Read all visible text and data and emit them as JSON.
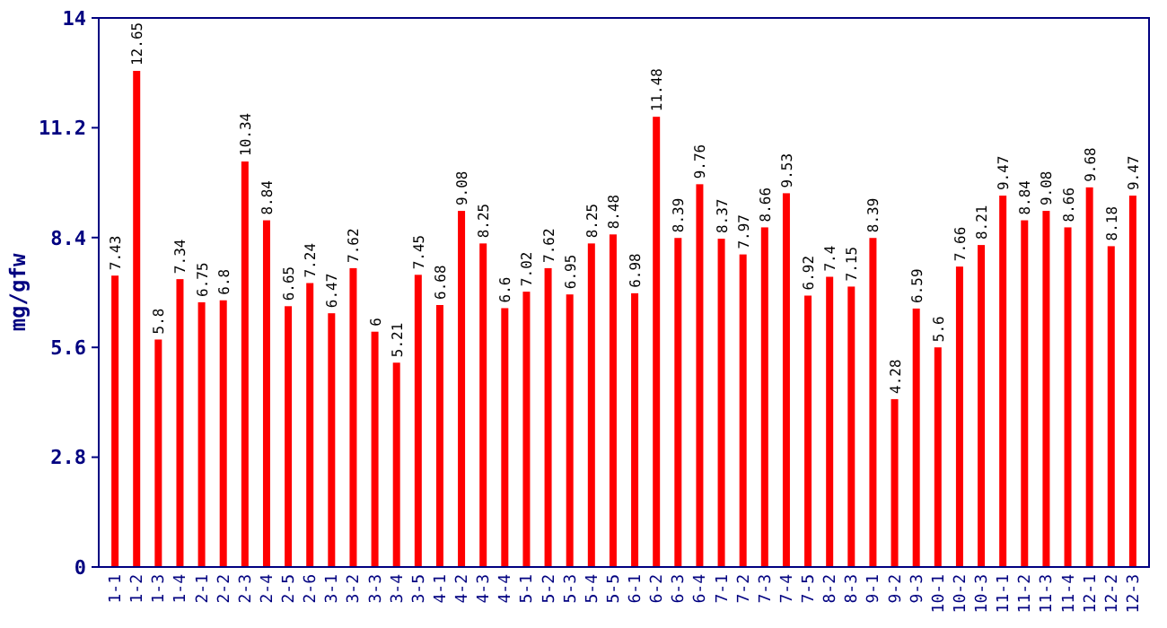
{
  "chart_data": {
    "type": "bar",
    "ylabel": "mg/gfw",
    "categories": [
      "1-1",
      "1-2",
      "1-3",
      "1-4",
      "2-1",
      "2-2",
      "2-3",
      "2-4",
      "2-5",
      "2-6",
      "3-1",
      "3-2",
      "3-3",
      "3-4",
      "3-5",
      "4-1",
      "4-2",
      "4-3",
      "4-4",
      "5-1",
      "5-2",
      "5-3",
      "5-4",
      "5-5",
      "6-1",
      "6-2",
      "6-3",
      "6-4",
      "7-1",
      "7-2",
      "7-3",
      "7-4",
      "7-5",
      "8-2",
      "8-3",
      "9-1",
      "9-2",
      "9-3",
      "10-1",
      "10-2",
      "10-3",
      "11-1",
      "11-2",
      "11-3",
      "11-4",
      "12-1",
      "12-2",
      "12-3"
    ],
    "values": [
      7.43,
      12.65,
      5.8,
      7.34,
      6.75,
      6.8,
      10.34,
      8.84,
      6.65,
      7.24,
      6.47,
      7.62,
      6,
      5.21,
      7.45,
      6.68,
      9.08,
      8.25,
      6.6,
      7.02,
      7.62,
      6.95,
      8.25,
      8.48,
      6.98,
      11.48,
      8.39,
      9.76,
      8.37,
      7.97,
      8.66,
      9.53,
      6.92,
      7.4,
      7.15,
      8.39,
      4.28,
      6.59,
      5.6,
      7.66,
      8.21,
      9.47,
      8.84,
      9.08,
      8.66,
      9.68,
      8.18,
      9.47
    ],
    "color": "#ff0000",
    "ylim": [
      0,
      14
    ],
    "yticks": [
      0,
      2.8,
      5.6,
      8.4,
      11.2,
      14
    ],
    "data_labels": true,
    "grid": false
  }
}
